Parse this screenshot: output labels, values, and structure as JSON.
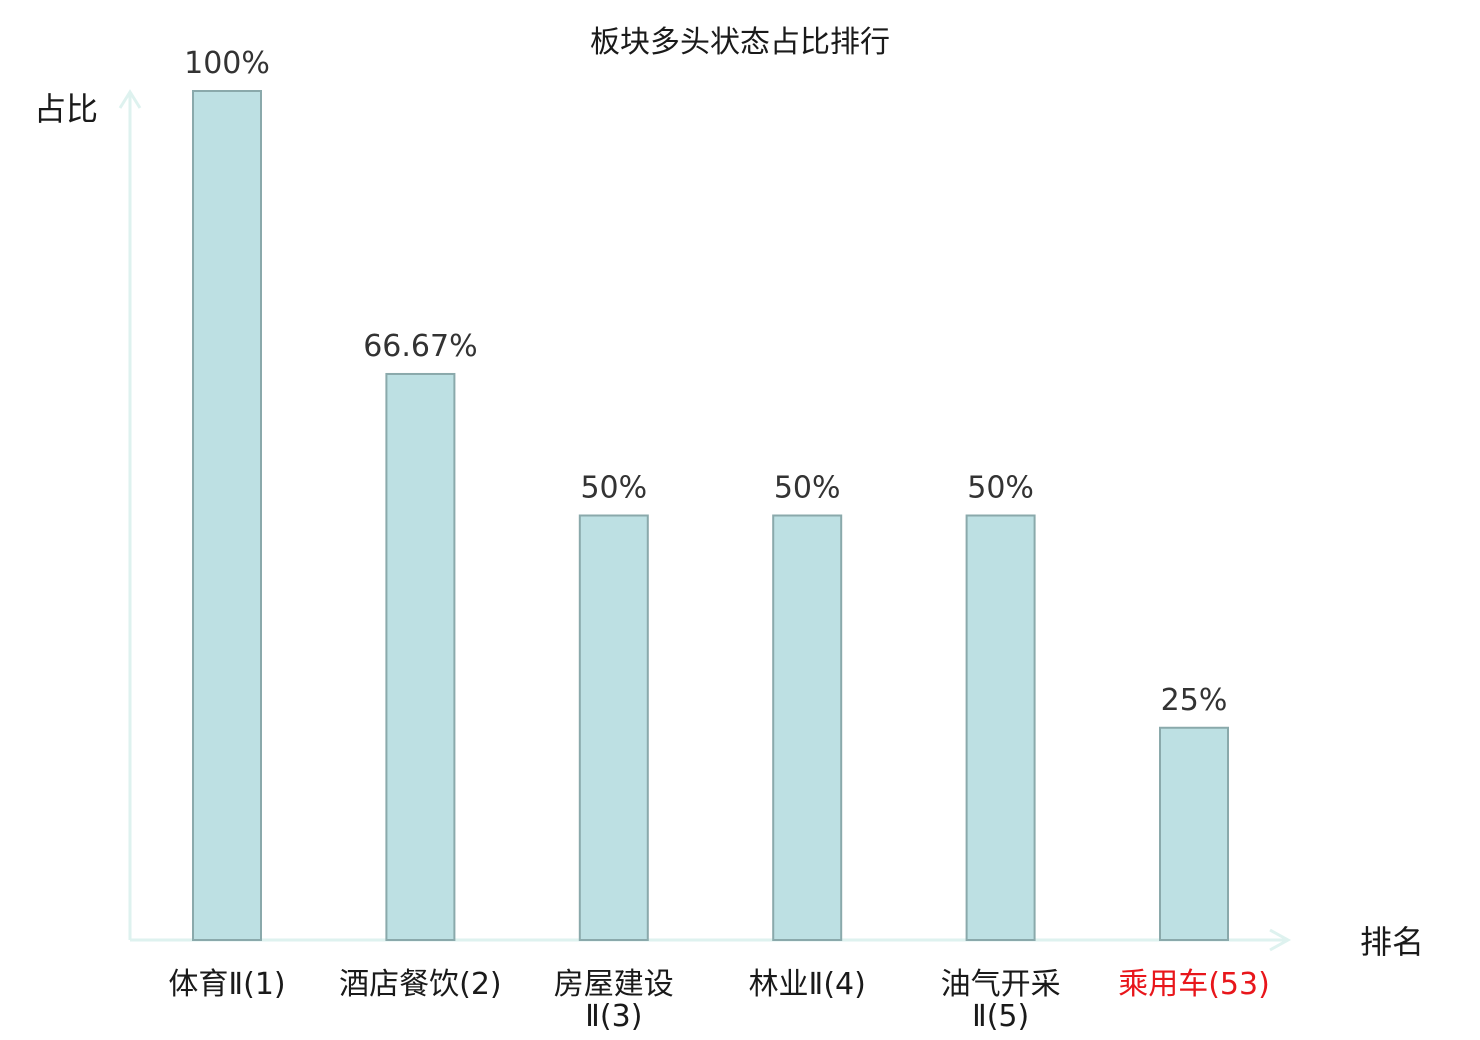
{
  "chart_data": {
    "type": "bar",
    "title": "板块多头状态占比排行",
    "xlabel": "排名",
    "ylabel": "占比",
    "categories": [
      [
        "体育Ⅱ(1)"
      ],
      [
        "酒店餐饮(2)"
      ],
      [
        "房屋建设",
        "Ⅱ(3)"
      ],
      [
        "林业Ⅱ(4)"
      ],
      [
        "油气开采",
        "Ⅱ(5)"
      ],
      [
        "乘用车(53)"
      ]
    ],
    "values": [
      100,
      66.67,
      50,
      50,
      50,
      25
    ],
    "data_labels": [
      "100%",
      "66.67%",
      "50%",
      "50%",
      "50%",
      "25%"
    ],
    "highlight_index": 5,
    "ylim": [
      0,
      100
    ],
    "grid": false,
    "legend": "none",
    "colors": {
      "bar_fill": "#bde0e3",
      "bar_stroke": "#8aa9ab",
      "axis": "#def2ef",
      "label": "#1a1a1a",
      "highlight": "#e8161b"
    }
  }
}
